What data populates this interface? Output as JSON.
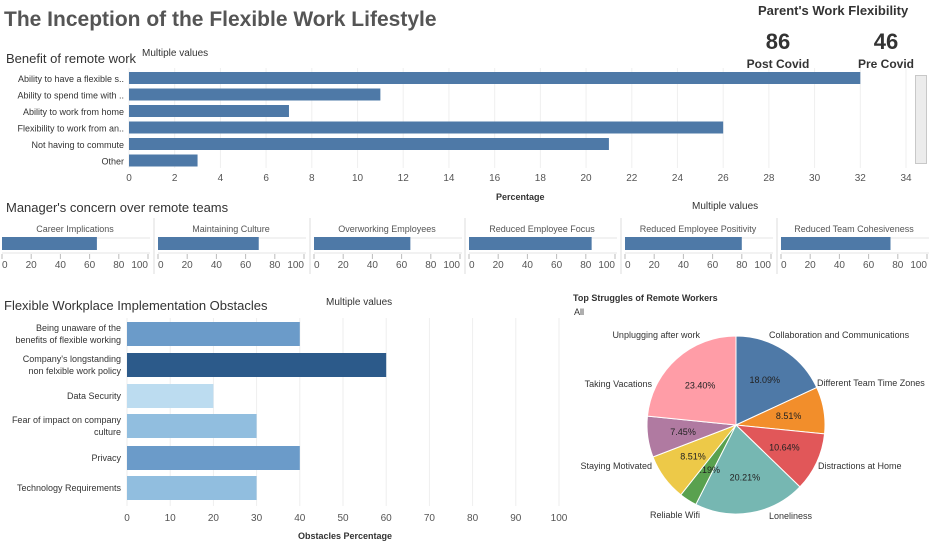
{
  "title": "The Inception of the Flexible Work Lifestyle",
  "kpi": {
    "title": "Parent's Work Flexibility",
    "post_value": "86",
    "post_label": "Post Covid",
    "pre_value": "46",
    "pre_label": "Pre Covid"
  },
  "benefit": {
    "title": "Benefit of remote work",
    "filter": "Multiple values",
    "xlabel": "Percentage"
  },
  "managers": {
    "title": "Manager's concern over remote teams",
    "filter": "Multiple values"
  },
  "obstacles": {
    "title": "Flexible Workplace Implementation Obstacles",
    "filter": "Multiple values",
    "xlabel": "Obstacles Percentage"
  },
  "struggles": {
    "title": "Top Struggles of Remote Workers",
    "filter": "All"
  },
  "colors": {
    "bar_blue": "#4e79a7",
    "obstacle_shades": [
      "#6b9bc9",
      "#2c5a8a",
      "#bcdcf0",
      "#91bedf",
      "#6b9bc9",
      "#91bedf"
    ]
  },
  "chart_data": [
    {
      "type": "bar",
      "orientation": "horizontal",
      "categories": [
        "Ability to have a flexible s..",
        "Ability to spend time with ..",
        "Ability to work from home",
        "Flexibility to work from an..",
        "Not having to commute",
        "Other"
      ],
      "values": [
        32,
        11,
        7,
        26,
        21,
        3
      ],
      "xlabel": "Percentage",
      "xlim": [
        0,
        34
      ],
      "xticks": [
        0,
        2,
        4,
        6,
        8,
        10,
        12,
        14,
        16,
        18,
        20,
        22,
        24,
        26,
        28,
        30,
        32,
        34
      ]
    },
    {
      "type": "bar",
      "orientation": "horizontal",
      "panels": [
        {
          "label": "Career Implications",
          "value": 65
        },
        {
          "label": "Maintaining Culture",
          "value": 69
        },
        {
          "label": "Overworking Employees",
          "value": 66
        },
        {
          "label": "Reduced Employee Focus",
          "value": 84
        },
        {
          "label": "Reduced Employee Positivity",
          "value": 80
        },
        {
          "label": "Reduced Team Cohesiveness",
          "value": 75
        }
      ],
      "xlim": [
        0,
        100
      ],
      "xticks": [
        0,
        20,
        40,
        60,
        80,
        100
      ]
    },
    {
      "type": "bar",
      "orientation": "horizontal",
      "categories": [
        [
          "Being unaware of the",
          "benefits of flexible working"
        ],
        [
          "Company's longstanding",
          "non felxible work policy"
        ],
        [
          "Data Security"
        ],
        [
          "Fear of impact on company",
          "culture"
        ],
        [
          "Privacy"
        ],
        [
          "Technology Requirements"
        ]
      ],
      "values": [
        40,
        60,
        20,
        30,
        40,
        30
      ],
      "xlabel": "Obstacles Percentage",
      "xlim": [
        0,
        100
      ],
      "xticks": [
        0,
        10,
        20,
        30,
        40,
        50,
        60,
        70,
        80,
        90,
        100
      ]
    },
    {
      "type": "pie",
      "title": "Top Struggles of Remote Workers",
      "slices": [
        {
          "label": "Collaboration and Communications",
          "value": 18.09,
          "text": "18.09%",
          "color": "#4e79a7"
        },
        {
          "label": "Different Team Time Zones",
          "value": 8.51,
          "text": "8.51%",
          "color": "#f28e2b"
        },
        {
          "label": "Distractions at Home",
          "value": 10.64,
          "text": "10.64%",
          "color": "#e15759"
        },
        {
          "label": "Loneliness",
          "value": 20.21,
          "text": "20.21%",
          "color": "#76b7b2"
        },
        {
          "label": "Reliable Wifi",
          "value": 3.19,
          "text": "3.19%",
          "color": "#59a14f"
        },
        {
          "label": "Staying Motivated",
          "value": 8.51,
          "text": "8.51%",
          "color": "#edc948"
        },
        {
          "label": "Taking Vacations",
          "value": 7.45,
          "text": "7.45%",
          "color": "#b07aa1"
        },
        {
          "label": "Unplugging after work",
          "value": 23.4,
          "text": "23.40%",
          "color": "#ff9da7"
        }
      ]
    }
  ]
}
